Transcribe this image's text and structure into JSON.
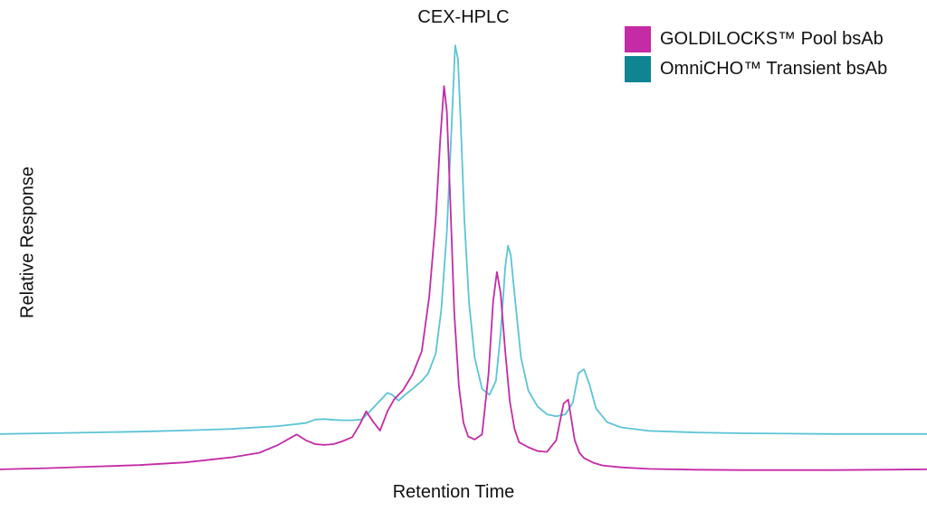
{
  "chart_data": {
    "type": "line",
    "title": "CEX-HPLC",
    "xlabel": "Retention Time",
    "ylabel": "Relative Response",
    "x_ticks_shown": false,
    "y_ticks_shown": false,
    "grid": false,
    "legend_position": "top-right",
    "xlim": [
      0,
      100
    ],
    "ylim": [
      0,
      100
    ],
    "series": [
      {
        "name": "GOLDILOCKS™ Pool bsAb",
        "color": "#c42ba5",
        "x": [
          0,
          5,
          10,
          15,
          20,
          25,
          28,
          30,
          32,
          33,
          34,
          35,
          36,
          37,
          38,
          38.8,
          39.5,
          40.2,
          41,
          41.8,
          42.5,
          43.5,
          44.5,
          45.5,
          46.3,
          47,
          47.5,
          47.9,
          48.2,
          48.6,
          49,
          49.5,
          50,
          50.5,
          51.2,
          52,
          52.7,
          53.2,
          53.6,
          54,
          54.5,
          55,
          55.5,
          56,
          57,
          58,
          59,
          60,
          60.8,
          61.3,
          61.6,
          62,
          62.5,
          63,
          64,
          65,
          67,
          70,
          75,
          80,
          85,
          90,
          95,
          100
        ],
        "y": [
          0.5,
          0.8,
          1.2,
          1.6,
          2.3,
          3.6,
          4.8,
          6.8,
          9.5,
          8.0,
          7.0,
          6.8,
          7.0,
          7.8,
          8.8,
          12.0,
          15.5,
          13.0,
          10.5,
          15.5,
          18.5,
          21.0,
          25.0,
          31.0,
          45.0,
          65.0,
          86.0,
          99.5,
          93.0,
          68.0,
          41.0,
          22.0,
          12.5,
          9.0,
          8.2,
          9.5,
          25.0,
          44.0,
          51.5,
          46.0,
          31.0,
          18.0,
          11.0,
          7.5,
          6.2,
          5.2,
          5.0,
          8.0,
          17.5,
          18.5,
          14.0,
          8.0,
          4.8,
          3.4,
          2.2,
          1.5,
          1.0,
          0.6,
          0.4,
          0.3,
          0.3,
          0.3,
          0.4,
          0.5
        ]
      },
      {
        "name": "OmniCHO™ Transient bsAb",
        "color": "#5bc4d6",
        "x": [
          0,
          5,
          10,
          15,
          20,
          25,
          30,
          33,
          34,
          35,
          36,
          37,
          38,
          39,
          40,
          41,
          41.8,
          42.3,
          43,
          43.7,
          44.5,
          45.5,
          46.2,
          47,
          47.6,
          48.2,
          48.7,
          49.1,
          49.4,
          49.7,
          50.1,
          50.6,
          51.2,
          52,
          52.8,
          53.5,
          54,
          54.5,
          54.8,
          55.1,
          55.6,
          56.2,
          57,
          58,
          59,
          60,
          61,
          61.8,
          62.4,
          63,
          63.6,
          64.3,
          65.5,
          67,
          70,
          75,
          80,
          85,
          90,
          95,
          100
        ],
        "y": [
          0.5,
          0.7,
          0.9,
          1.1,
          1.4,
          1.8,
          2.5,
          3.3,
          4.2,
          4.3,
          4.1,
          4.0,
          4.0,
          4.2,
          6.5,
          9.0,
          11.0,
          10.5,
          9.0,
          10.5,
          12.0,
          14.0,
          16.0,
          21.0,
          32.0,
          52.0,
          78.0,
          99.5,
          96.0,
          80.0,
          55.0,
          34.0,
          20.0,
          12.0,
          10.5,
          14.0,
          26.0,
          43.0,
          48.5,
          46.0,
          34.0,
          20.0,
          11.5,
          7.5,
          5.5,
          5.0,
          5.5,
          8.5,
          16.0,
          17.0,
          13.0,
          7.0,
          3.5,
          2.2,
          1.3,
          0.9,
          0.7,
          0.6,
          0.5,
          0.5,
          0.5
        ]
      }
    ]
  }
}
